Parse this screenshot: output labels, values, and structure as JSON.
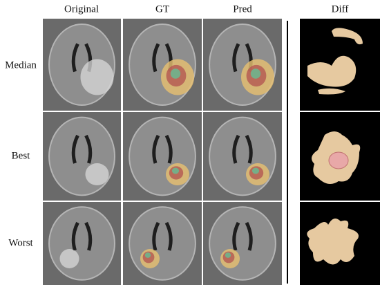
{
  "columns": [
    "Original",
    "GT",
    "Pred",
    "Diff"
  ],
  "rows": [
    "Median",
    "Best",
    "Worst"
  ]
}
